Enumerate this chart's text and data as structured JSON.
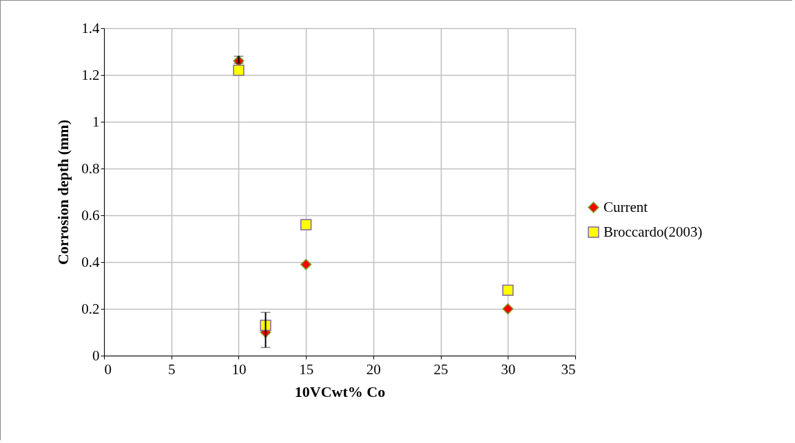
{
  "chart_data": {
    "type": "scatter",
    "xlabel": "10VCwt% Co",
    "ylabel": "Corrosion depth (mm)",
    "x": [
      10,
      12,
      15,
      30
    ],
    "series": [
      {
        "name": "Current",
        "color": "#ff0000",
        "marker": "diamond",
        "values": [
          1.26,
          0.1,
          0.39,
          0.2
        ],
        "errors": [
          [
            1.25,
            1.28
          ],
          [
            0.035,
            0.185
          ],
          null,
          null
        ]
      },
      {
        "name": "Broccardo(2003)",
        "color": "#ffff00",
        "marker": "square",
        "values": [
          1.22,
          0.13,
          0.56,
          0.28
        ]
      }
    ],
    "xlim": [
      0,
      35
    ],
    "xticks": [
      0,
      5,
      10,
      15,
      20,
      25,
      30,
      35
    ],
    "ylim": [
      0,
      1.4
    ],
    "yticks": [
      0,
      0.2,
      0.4,
      0.6,
      0.8,
      1,
      1.2,
      1.4
    ],
    "grid": true,
    "legend": "right"
  }
}
